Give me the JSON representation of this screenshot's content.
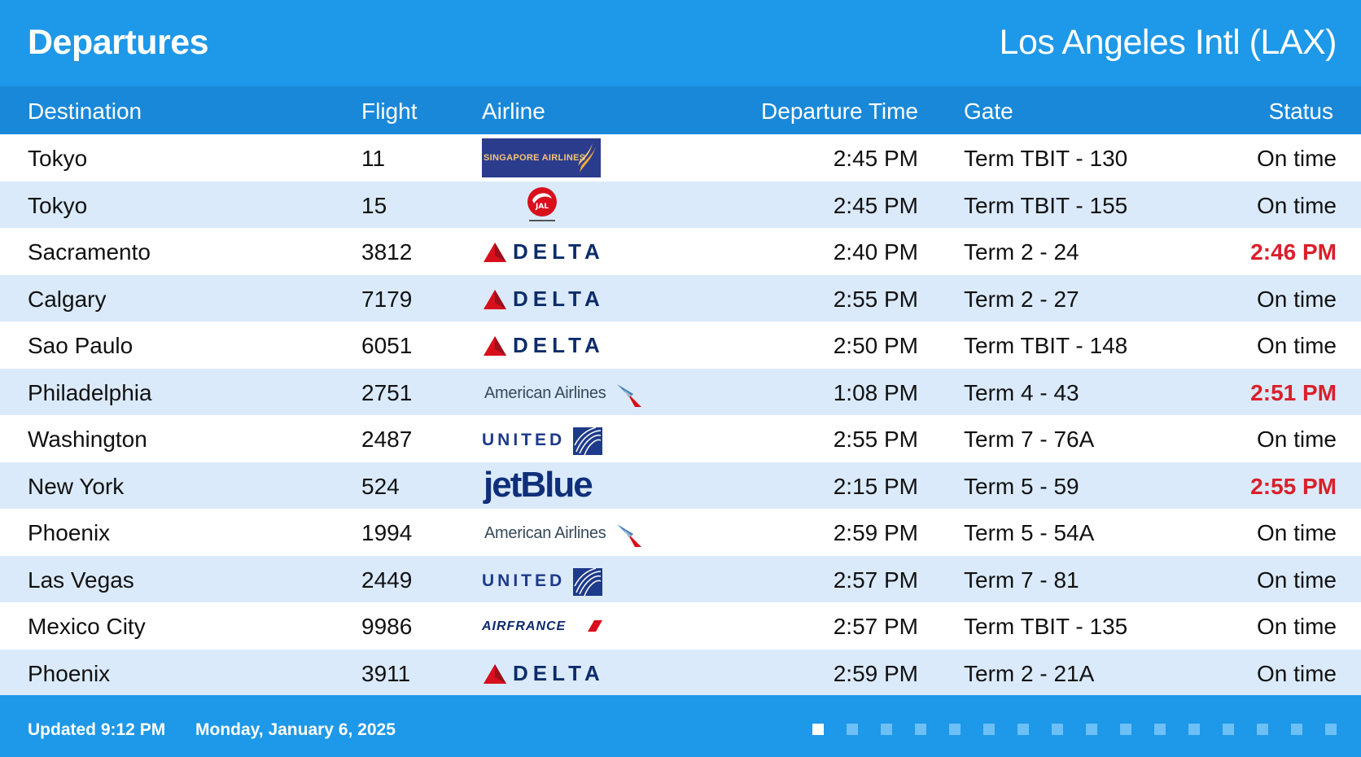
{
  "header": {
    "title": "Departures",
    "airport": "Los Angeles Intl (LAX)"
  },
  "columns": {
    "destination": "Destination",
    "flight": "Flight",
    "airline": "Airline",
    "departure_time": "Departure Time",
    "gate": "Gate",
    "status": "Status"
  },
  "logos": {
    "singapore": "SINGAPORE AIRLINES",
    "delta": "DELTA",
    "american": "American Airlines",
    "united": "UNITED",
    "jetblue": "jetBlue",
    "airfrance": "AIRFRANCE"
  },
  "flights": [
    {
      "destination": "Tokyo",
      "flight": "11",
      "airline": "Singapore Airlines",
      "logo": "singapore",
      "time": "2:45 PM",
      "gate": "Term TBIT - 130",
      "status": "On time",
      "delayed": false
    },
    {
      "destination": "Tokyo",
      "flight": "15",
      "airline": "Japan Airlines",
      "logo": "jal",
      "time": "2:45 PM",
      "gate": "Term TBIT - 155",
      "status": "On time",
      "delayed": false
    },
    {
      "destination": "Sacramento",
      "flight": "3812",
      "airline": "Delta",
      "logo": "delta",
      "time": "2:40 PM",
      "gate": "Term 2 - 24",
      "status": "2:46 PM",
      "delayed": true
    },
    {
      "destination": "Calgary",
      "flight": "7179",
      "airline": "Delta",
      "logo": "delta",
      "time": "2:55 PM",
      "gate": "Term 2 - 27",
      "status": "On time",
      "delayed": false
    },
    {
      "destination": "Sao Paulo",
      "flight": "6051",
      "airline": "Delta",
      "logo": "delta",
      "time": "2:50 PM",
      "gate": "Term TBIT - 148",
      "status": "On time",
      "delayed": false
    },
    {
      "destination": "Philadelphia",
      "flight": "2751",
      "airline": "American Airlines",
      "logo": "american",
      "time": "1:08 PM",
      "gate": "Term 4 - 43",
      "status": "2:51 PM",
      "delayed": true
    },
    {
      "destination": "Washington",
      "flight": "2487",
      "airline": "United",
      "logo": "united",
      "time": "2:55 PM",
      "gate": "Term 7 - 76A",
      "status": "On time",
      "delayed": false
    },
    {
      "destination": "New York",
      "flight": "524",
      "airline": "JetBlue",
      "logo": "jetblue",
      "time": "2:15 PM",
      "gate": "Term 5 - 59",
      "status": "2:55 PM",
      "delayed": true
    },
    {
      "destination": "Phoenix",
      "flight": "1994",
      "airline": "American Airlines",
      "logo": "american",
      "time": "2:59 PM",
      "gate": "Term 5 - 54A",
      "status": "On time",
      "delayed": false
    },
    {
      "destination": "Las Vegas",
      "flight": "2449",
      "airline": "United",
      "logo": "united",
      "time": "2:57 PM",
      "gate": "Term 7 - 81",
      "status": "On time",
      "delayed": false
    },
    {
      "destination": "Mexico City",
      "flight": "9986",
      "airline": "Air France",
      "logo": "airfrance",
      "time": "2:57 PM",
      "gate": "Term TBIT - 135",
      "status": "On time",
      "delayed": false
    },
    {
      "destination": "Phoenix",
      "flight": "3911",
      "airline": "Delta",
      "logo": "delta",
      "time": "2:59 PM",
      "gate": "Term 2 - 21A",
      "status": "On time",
      "delayed": false
    }
  ],
  "footer": {
    "updated": "Updated 9:12 PM",
    "date": "Monday, January 6, 2025",
    "page_current": 1,
    "page_total": 16
  },
  "colors": {
    "header_bg": "#1e98e8",
    "column_header_bg": "#1a88d8",
    "row_alt_bg": "#daeafb",
    "delayed": "#d9202b"
  }
}
